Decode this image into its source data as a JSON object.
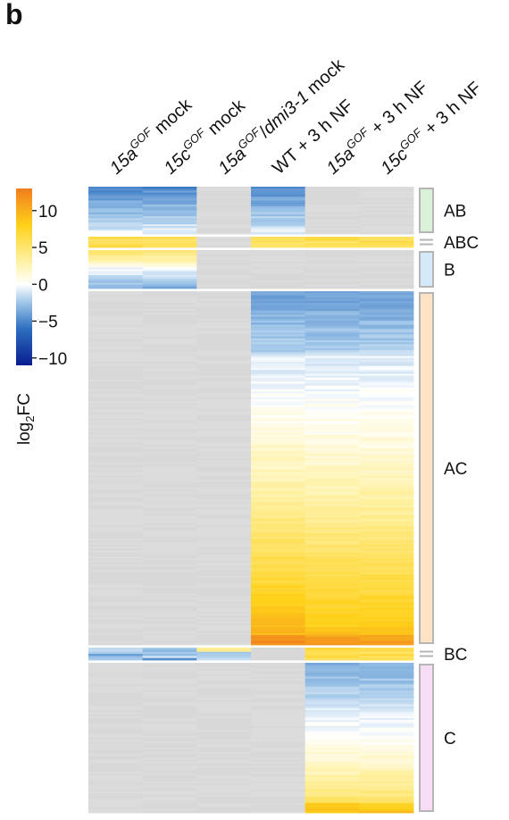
{
  "panel_letter": "b",
  "colors": {
    "na": "#d9d9d9",
    "scale_stops": [
      "#081d8f",
      "#2e6fc0",
      "#9ec5e8",
      "#ffffff",
      "#fff2a8",
      "#ffd11a",
      "#f07d1e"
    ],
    "cluster_bar": {
      "AB": "#d9f0d9",
      "ABC": "#e8e8e8",
      "B": "#d5eaf8",
      "AC": "#fde3c4",
      "BC": "#e8e8e8",
      "C": "#f7dcf5"
    },
    "cluster_bar_border": "#b5b5b5"
  },
  "chart_data": {
    "type": "heatmap",
    "columns": [
      {
        "pre": "15a",
        "sup": "GOF",
        "post": " mock",
        "italic_pre": true
      },
      {
        "pre": "15c",
        "sup": "GOF",
        "post": " mock",
        "italic_pre": true
      },
      {
        "pre": "15a",
        "sup": "GOF",
        "post": "/",
        "tail": "dmi3-1",
        "tail2": " mock",
        "italic_pre": true,
        "italic_tail": true
      },
      {
        "pre": "WT + 3 h NF",
        "sup": "",
        "post": "",
        "italic_pre": false
      },
      {
        "pre": "15a",
        "sup": "GOF",
        "post": " + 3 h NF",
        "italic_pre": true
      },
      {
        "pre": "15c",
        "sup": "GOF",
        "post": " + 3 h NF",
        "italic_pre": true
      }
    ],
    "colorbar": {
      "title": "log",
      "title_sub": "2",
      "title_tail": "FC",
      "range": [
        -11,
        13
      ],
      "ticks": [
        10,
        5,
        0,
        -5,
        -10
      ],
      "tick_labels": [
        "10",
        "5",
        "0",
        "−5",
        "−10"
      ]
    },
    "clusters": [
      {
        "label": "AB",
        "rows": 50,
        "pattern": [
          "blue_to_white",
          "blue_to_white",
          "na",
          "blue_to_white",
          "na",
          "na"
        ]
      },
      {
        "label": "ABC",
        "rows": 12,
        "pattern": [
          "yellow",
          "yellow",
          "na",
          "yellow",
          "yellow",
          "yellow"
        ]
      },
      {
        "label": "B",
        "rows": 46,
        "pattern": [
          "yellow_to_blue",
          "yellow_to_blue",
          "na",
          "na",
          "na",
          "na"
        ]
      },
      {
        "label": "AC",
        "rows": 400,
        "pattern": [
          "na",
          "na",
          "na",
          "blue_to_orange",
          "blue_to_orange",
          "blue_to_orange"
        ]
      },
      {
        "label": "BC",
        "rows": 14,
        "pattern": [
          "blue_mix",
          "blue_mix",
          "yellow_mix",
          "na",
          "yellow",
          "yellow"
        ]
      },
      {
        "label": "C",
        "rows": 170,
        "pattern": [
          "na",
          "na",
          "na",
          "na",
          "blue_to_yellow",
          "blue_to_yellow"
        ]
      }
    ]
  }
}
